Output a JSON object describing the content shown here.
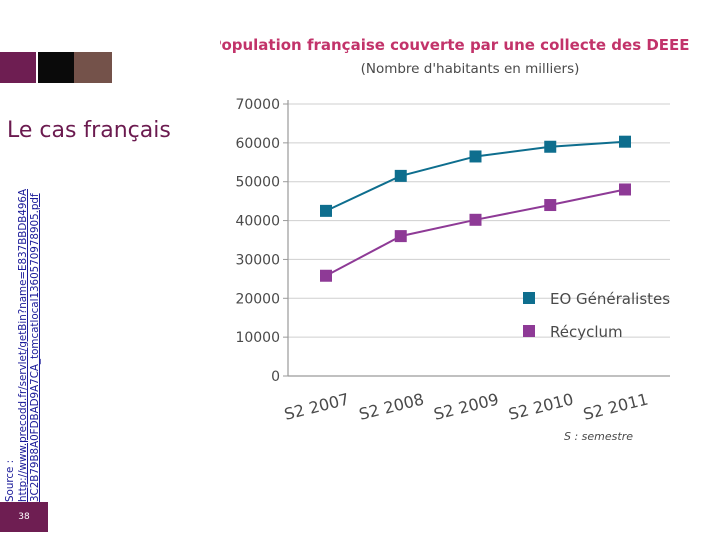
{
  "slide": {
    "heading": "Le cas français",
    "source_prefix": "Source :",
    "source_url_line1": "http://www.precodd.fr/servlet/getBin?name=E837BBDB496A",
    "source_url_line2": "3C2B79B8A0FDBAD9A7CA_tomcatlocal1360570978905.pdf",
    "slide_number": "38",
    "deco_colors": [
      "#6e1e52",
      "#ffffff",
      "#0a0a0a",
      "#74524a"
    ]
  },
  "chart_data": {
    "type": "line",
    "title": "Population française couverte par une collecte des DEEE",
    "subtitle": "(Nombre d'habitants en milliers)",
    "categories": [
      "S2 2007",
      "S2 2008",
      "S2 2009",
      "S2 2010",
      "S2 2011"
    ],
    "series": [
      {
        "name": "EO Généralistes",
        "color": "#0e6e8e",
        "values": [
          42500,
          51500,
          56500,
          59000,
          60300
        ]
      },
      {
        "name": "Récyclum",
        "color": "#8e3a96",
        "values": [
          25800,
          36000,
          40200,
          44000,
          48000
        ]
      }
    ],
    "ylim": [
      0,
      70000
    ],
    "yticks": [
      0,
      10000,
      20000,
      30000,
      40000,
      50000,
      60000,
      70000
    ],
    "ytick_labels": [
      "0",
      "10000",
      "20000",
      "30000",
      "40000",
      "50000",
      "60000",
      "70000"
    ],
    "grid": true,
    "legend": "right-middle",
    "x_note": "S : semestre",
    "axis_color": "#9a9a9a",
    "grid_color": "#cfcfcf"
  }
}
